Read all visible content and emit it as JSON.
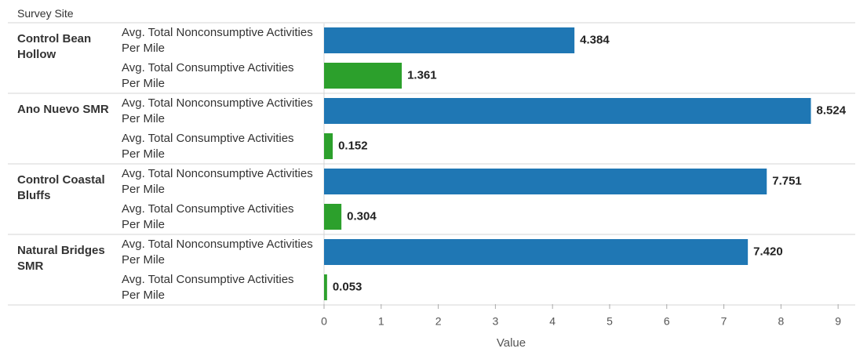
{
  "chart_data": {
    "type": "bar",
    "row_header": "Survey Site",
    "x_label": "Value",
    "categories": [
      "Control Bean Hollow",
      "Ano Nuevo SMR",
      "Control Coastal Bluffs",
      "Natural Bridges SMR"
    ],
    "series": [
      {
        "name": "Avg. Total Nonconsumptive Activities Per Mile",
        "color": "#1f77b4",
        "values": [
          4.384,
          8.524,
          7.751,
          7.42
        ],
        "value_labels": [
          "4.384",
          "8.524",
          "7.751",
          "7.420"
        ]
      },
      {
        "name": "Avg. Total Consumptive Activities Per Mile",
        "color": "#2ca02c",
        "values": [
          1.361,
          0.152,
          0.304,
          0.053
        ],
        "value_labels": [
          "1.361",
          "0.152",
          "0.304",
          "0.053"
        ]
      }
    ],
    "xlim": [
      0,
      9.3
    ],
    "xticks": [
      0,
      1,
      2,
      3,
      4,
      5,
      6,
      7,
      8,
      9
    ]
  }
}
